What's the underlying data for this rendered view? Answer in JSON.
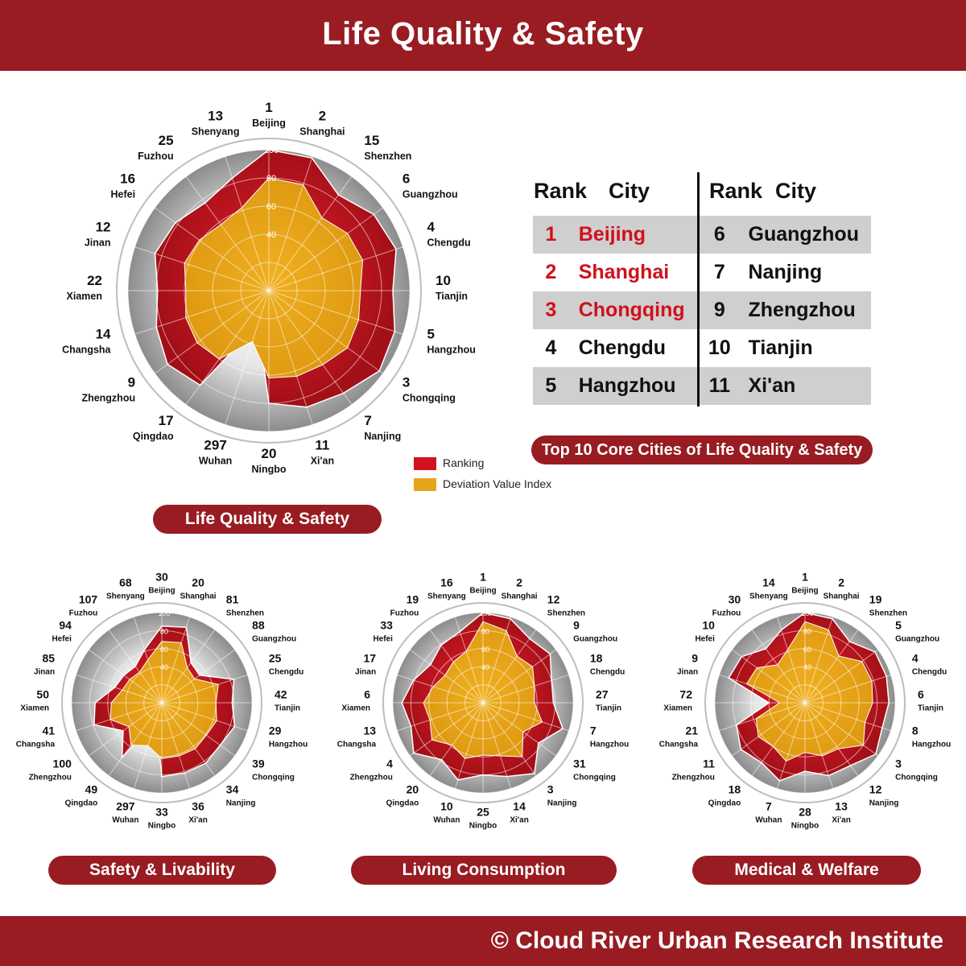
{
  "header": {
    "title": "Life Quality & Safety"
  },
  "footer": {
    "credit": "© Cloud River Urban Research Institute"
  },
  "legend": [
    {
      "label": "Ranking",
      "color": "#d3121f"
    },
    {
      "label": "Deviation Value Index",
      "color": "#e5a51a"
    }
  ],
  "ranking_table": {
    "caption": "Top 10 Core Cities of Life Quality & Safety",
    "headers": {
      "rank": "Rank",
      "city": "City"
    },
    "left": [
      {
        "rank": "1",
        "city": "Beijing"
      },
      {
        "rank": "2",
        "city": "Shanghai"
      },
      {
        "rank": "3",
        "city": "Chongqing"
      },
      {
        "rank": "4",
        "city": "Chengdu"
      },
      {
        "rank": "5",
        "city": "Hangzhou"
      }
    ],
    "right": [
      {
        "rank": "6",
        "city": "Guangzhou"
      },
      {
        "rank": "7",
        "city": "Nanjing"
      },
      {
        "rank": "9",
        "city": "Zhengzhou"
      },
      {
        "rank": "10",
        "city": "Tianjin"
      },
      {
        "rank": "11",
        "city": "Xi'an"
      }
    ]
  },
  "chart_data": [
    {
      "type": "radar",
      "title": "Life Quality & Safety",
      "cities": [
        "Beijing",
        "Shanghai",
        "Shenzhen",
        "Guangzhou",
        "Chengdu",
        "Tianjin",
        "Hangzhou",
        "Chongqing",
        "Nanjing",
        "Xi'an",
        "Ningbo",
        "Wuhan",
        "Qingdao",
        "Zhengzhou",
        "Changsha",
        "Xiamen",
        "Jinan",
        "Hefei",
        "Fuzhou",
        "Shenyang"
      ],
      "ranks": [
        "1",
        "2",
        "15",
        "6",
        "4",
        "10",
        "5",
        "3",
        "7",
        "11",
        "20",
        "297",
        "17",
        "9",
        "14",
        "22",
        "12",
        "16",
        "25",
        "13"
      ],
      "ticks": [
        "40",
        "60",
        "80",
        "100"
      ],
      "rlim": [
        0,
        100
      ],
      "series": [
        {
          "name": "Ranking",
          "values": [
            100,
            99,
            84,
            92,
            95,
            88,
            94,
            97,
            90,
            87,
            80,
            25,
            83,
            89,
            84,
            79,
            85,
            82,
            77,
            84
          ]
        },
        {
          "name": "Deviation Value Index",
          "values": [
            80,
            79,
            64,
            69,
            70,
            65,
            67,
            69,
            65,
            64,
            62,
            38,
            60,
            63,
            62,
            59,
            63,
            61,
            58,
            62
          ]
        }
      ]
    },
    {
      "type": "radar",
      "title": "Safety & Livability",
      "cities": [
        "Beijing",
        "Shanghai",
        "Shenzhen",
        "Guangzhou",
        "Chengdu",
        "Tianjin",
        "Hangzhou",
        "Chongqing",
        "Nanjing",
        "Xi'an",
        "Ningbo",
        "Wuhan",
        "Qingdao",
        "Zhengzhou",
        "Changsha",
        "Xiamen",
        "Jinan",
        "Hefei",
        "Fuzhou",
        "Shenyang"
      ],
      "ranks": [
        "30",
        "20",
        "81",
        "88",
        "25",
        "42",
        "29",
        "39",
        "34",
        "36",
        "33",
        "297",
        "49",
        "100",
        "41",
        "50",
        "85",
        "94",
        "107",
        "68"
      ],
      "ticks": [
        "40",
        "60",
        "80",
        "100"
      ],
      "rlim": [
        0,
        100
      ],
      "series": [
        {
          "name": "Ranking",
          "values": [
            85,
            88,
            55,
            52,
            84,
            78,
            85,
            80,
            83,
            82,
            82,
            20,
            75,
            53,
            79,
            74,
            55,
            52,
            50,
            62
          ]
        },
        {
          "name": "Deviation Value Index",
          "values": [
            68,
            70,
            48,
            45,
            66,
            60,
            64,
            61,
            63,
            62,
            62,
            50,
            58,
            45,
            60,
            56,
            46,
            44,
            42,
            50
          ]
        }
      ]
    },
    {
      "type": "radar",
      "title": "Living Consumption",
      "cities": [
        "Beijing",
        "Shanghai",
        "Shenzhen",
        "Guangzhou",
        "Chengdu",
        "Tianjin",
        "Hangzhou",
        "Chongqing",
        "Nanjing",
        "Xi'an",
        "Ningbo",
        "Wuhan",
        "Qingdao",
        "Zhengzhou",
        "Changsha",
        "Xiamen",
        "Jinan",
        "Hefei",
        "Fuzhou",
        "Shenyang"
      ],
      "ranks": [
        "1",
        "2",
        "12",
        "9",
        "18",
        "27",
        "7",
        "31",
        "3",
        "14",
        "25",
        "10",
        "20",
        "4",
        "13",
        "6",
        "17",
        "33",
        "19",
        "16"
      ],
      "ticks": [
        "40",
        "60",
        "80",
        "100"
      ],
      "rlim": [
        0,
        100
      ],
      "series": [
        {
          "name": "Ranking",
          "values": [
            100,
            98,
            88,
            92,
            80,
            78,
            93,
            76,
            97,
            86,
            80,
            90,
            78,
            95,
            84,
            90,
            81,
            72,
            79,
            83
          ]
        },
        {
          "name": "Deviation Value Index",
          "values": [
            90,
            84,
            64,
            68,
            60,
            57,
            69,
            55,
            74,
            62,
            58,
            65,
            58,
            70,
            62,
            66,
            58,
            52,
            56,
            60
          ]
        }
      ]
    },
    {
      "type": "radar",
      "title": "Medical & Welfare",
      "cities": [
        "Beijing",
        "Shanghai",
        "Shenzhen",
        "Guangzhou",
        "Chengdu",
        "Tianjin",
        "Hangzhou",
        "Chongqing",
        "Nanjing",
        "Xi'an",
        "Ningbo",
        "Wuhan",
        "Qingdao",
        "Zhengzhou",
        "Changsha",
        "Xiamen",
        "Jinan",
        "Hefei",
        "Fuzhou",
        "Shenyang"
      ],
      "ranks": [
        "1",
        "2",
        "19",
        "5",
        "4",
        "6",
        "8",
        "3",
        "12",
        "13",
        "28",
        "7",
        "18",
        "11",
        "21",
        "72",
        "9",
        "10",
        "30",
        "14"
      ],
      "ticks": [
        "40",
        "60",
        "80",
        "100"
      ],
      "rlim": [
        0,
        100
      ],
      "series": [
        {
          "name": "Ranking",
          "values": [
            100,
            98,
            84,
            96,
            95,
            93,
            90,
            97,
            86,
            85,
            76,
            91,
            82,
            88,
            80,
            40,
            89,
            87,
            74,
            85
          ]
        },
        {
          "name": "Deviation Value Index",
          "values": [
            90,
            85,
            64,
            78,
            78,
            75,
            70,
            80,
            63,
            62,
            55,
            68,
            60,
            64,
            57,
            28,
            68,
            66,
            52,
            62
          ]
        }
      ]
    }
  ]
}
